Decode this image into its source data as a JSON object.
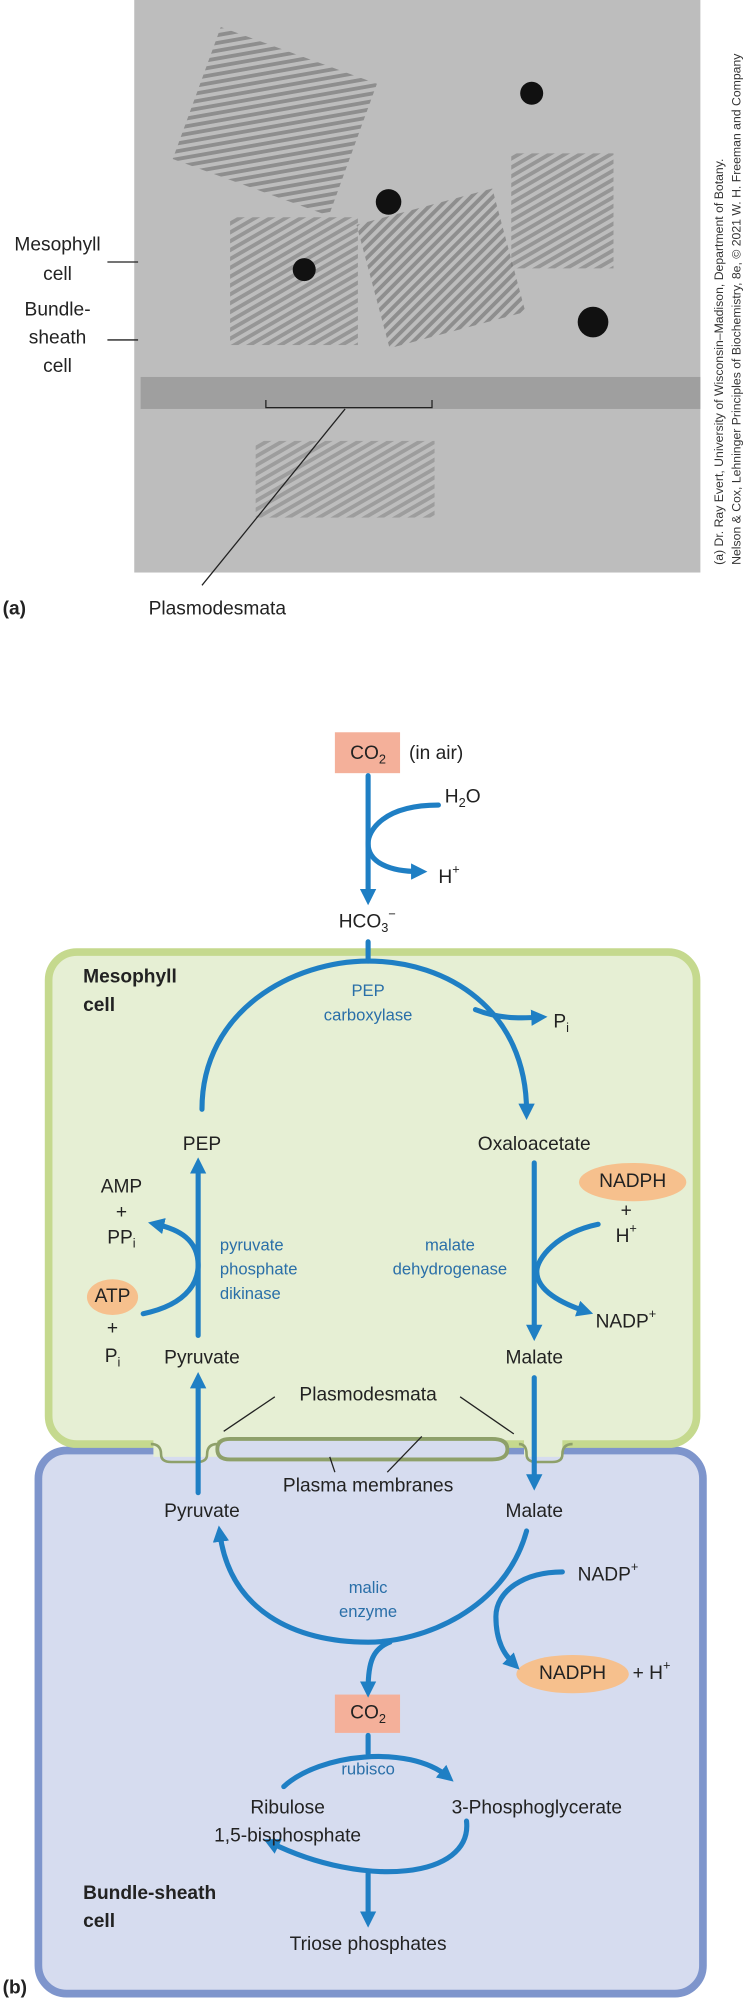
{
  "panel_a": {
    "label": "(a)",
    "mesophyll_label": [
      "Mesophyll",
      "cell"
    ],
    "bundle_sheath_label": [
      "Bundle-",
      "sheath",
      "cell"
    ],
    "plasmodesmata_label": "Plasmodesmata",
    "credit": [
      "(a) Dr. Ray Evert, University of Wisconsin–Madison, Department of Botany.",
      "Nelson & Cox, Lehninger Principles of Biochemistry, 8e, © 2021 W. H. Freeman and Company"
    ]
  },
  "panel_b": {
    "label": "(b)",
    "co2_air": {
      "main": "CO",
      "sub": "2"
    },
    "in_air": "(in air)",
    "water": {
      "main": "H",
      "sub": "2",
      "tail": "O"
    },
    "proton_1": {
      "main": "H",
      "sup": "+"
    },
    "bicarbonate": {
      "main": "HCO",
      "sub": "3",
      "sup": "−"
    },
    "mesophyll_cell": [
      "Mesophyll",
      "cell"
    ],
    "pep_carboxylase": [
      "PEP",
      "carboxylase"
    ],
    "pi_1": {
      "main": "P",
      "sub": "i"
    },
    "pep": "PEP",
    "oxaloacetate": "Oxaloacetate",
    "nadph_1": "NADPH",
    "plus_1": "+",
    "proton_2": {
      "main": "H",
      "sup": "+"
    },
    "malate_dehydrogenase": [
      "malate",
      "dehydrogenase"
    ],
    "nadp_1": {
      "main": "NADP",
      "sup": "+"
    },
    "malate_1": "Malate",
    "amp": "AMP",
    "plus_2": "+",
    "ppi": {
      "main": "PP",
      "sub": "i"
    },
    "atp": "ATP",
    "plus_3": "+",
    "pi_2": {
      "main": "P",
      "sub": "i"
    },
    "ppdk": [
      "pyruvate",
      "phosphate",
      "dikinase"
    ],
    "pyruvate_1": "Pyruvate",
    "plasmodesmata": "Plasmodesmata",
    "plasma_membranes": "Plasma membranes",
    "pyruvate_2": "Pyruvate",
    "malate_2": "Malate",
    "nadp_2": {
      "main": "NADP",
      "sup": "+"
    },
    "malic_enzyme": [
      "malic",
      "enzyme"
    ],
    "nadph_2": "NADPH",
    "plus_h": {
      "main": "+ H",
      "sup": "+"
    },
    "co2_bs": {
      "main": "CO",
      "sub": "2"
    },
    "rubisco": "rubisco",
    "rubp": [
      "Ribulose",
      "1,5-bisphosphate"
    ],
    "pga": "3-Phosphoglycerate",
    "bundle_sheath_cell": [
      "Bundle-sheath",
      "cell"
    ],
    "triose": "Triose phosphates"
  }
}
